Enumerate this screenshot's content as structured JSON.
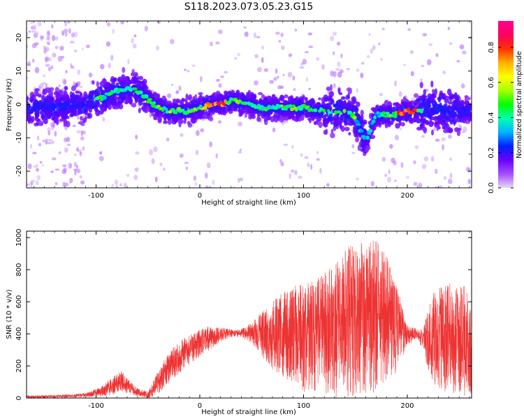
{
  "figure": {
    "title": "S118.2023.073.05.23.G15"
  },
  "chart_data": [
    {
      "type": "heatmap",
      "panel": "top",
      "xlabel": "Height of straight line (km)",
      "ylabel": "Frequency (Hz)",
      "xlim": [
        -167,
        262
      ],
      "ylim": [
        -25,
        25
      ],
      "xticks": [
        -100,
        0,
        100,
        200
      ],
      "xtick_labels": [
        "-100",
        "0",
        "100",
        "200"
      ],
      "yticks": [
        -20,
        -10,
        0,
        10,
        20
      ],
      "ytick_labels": [
        "-20",
        "-10",
        "0",
        "10",
        "20"
      ],
      "ridge": {
        "x": [
          -167,
          -140,
          -110,
          -95,
          -80,
          -65,
          -55,
          -45,
          -30,
          -10,
          0,
          10,
          20,
          30,
          40,
          60,
          80,
          100,
          120,
          140,
          150,
          160,
          170,
          180,
          190,
          200,
          210,
          220,
          240,
          262
        ],
        "y": [
          -1,
          -1,
          0,
          2,
          4,
          5,
          3,
          0,
          -2,
          -2,
          -1,
          0,
          0,
          1,
          1,
          -1,
          -1,
          -1,
          -2,
          -2,
          -4,
          -11,
          -3,
          -3,
          -3,
          -2,
          -2,
          -1,
          -2,
          -2
        ]
      },
      "hot_segments": [
        [
          5,
          25
        ],
        [
          190,
          210
        ]
      ],
      "colorbar": {
        "label": "Normalized spectral amplitude",
        "ticks": [
          0.0,
          0.2,
          0.4,
          0.6,
          0.8
        ],
        "tick_labels": [
          "0.0",
          "0.2",
          "0.4",
          "0.6",
          "0.8"
        ],
        "range": [
          0,
          0.95
        ],
        "colormap": [
          "#e9d7f5",
          "#a54dff",
          "#6a00ff",
          "#0020ff",
          "#00b4ff",
          "#00ffb0",
          "#00ff00",
          "#a8ff00",
          "#ffff00",
          "#ffb000",
          "#ff3000",
          "#ff0060",
          "#ff0090"
        ]
      }
    },
    {
      "type": "line",
      "panel": "bottom",
      "xlabel": "Height of straight line (km)",
      "ylabel": "SNR (10 * v/v)",
      "xlim": [
        -167,
        262
      ],
      "ylim": [
        0,
        1040
      ],
      "xticks": [
        -100,
        0,
        100,
        200
      ],
      "xtick_labels": [
        "-100",
        "0",
        "100",
        "200"
      ],
      "yticks": [
        0,
        200,
        400,
        600,
        800,
        1000
      ],
      "ytick_labels": [
        "0",
        "200",
        "400",
        "600",
        "800",
        "1000"
      ],
      "color": "#ee3333",
      "envelope": {
        "x": [
          -167,
          -140,
          -110,
          -95,
          -85,
          -75,
          -70,
          -60,
          -50,
          -45,
          -35,
          -25,
          -15,
          0,
          10,
          20,
          30,
          40,
          50,
          60,
          70,
          80,
          90,
          100,
          110,
          120,
          130,
          140,
          150,
          160,
          170,
          180,
          190,
          200,
          210,
          215,
          225,
          235,
          245,
          255,
          262
        ],
        "upper": [
          15,
          18,
          30,
          70,
          130,
          170,
          120,
          60,
          40,
          110,
          230,
          320,
          380,
          430,
          450,
          440,
          430,
          430,
          470,
          540,
          600,
          660,
          700,
          720,
          740,
          780,
          840,
          920,
          980,
          1020,
          1010,
          900,
          700,
          450,
          430,
          430,
          660,
          700,
          720,
          700,
          680
        ],
        "lower": [
          0,
          2,
          5,
          10,
          20,
          40,
          30,
          10,
          0,
          10,
          50,
          120,
          180,
          260,
          300,
          350,
          380,
          380,
          340,
          260,
          180,
          120,
          80,
          40,
          20,
          10,
          5,
          5,
          10,
          20,
          40,
          80,
          150,
          330,
          360,
          300,
          60,
          40,
          20,
          10,
          10
        ]
      }
    }
  ]
}
